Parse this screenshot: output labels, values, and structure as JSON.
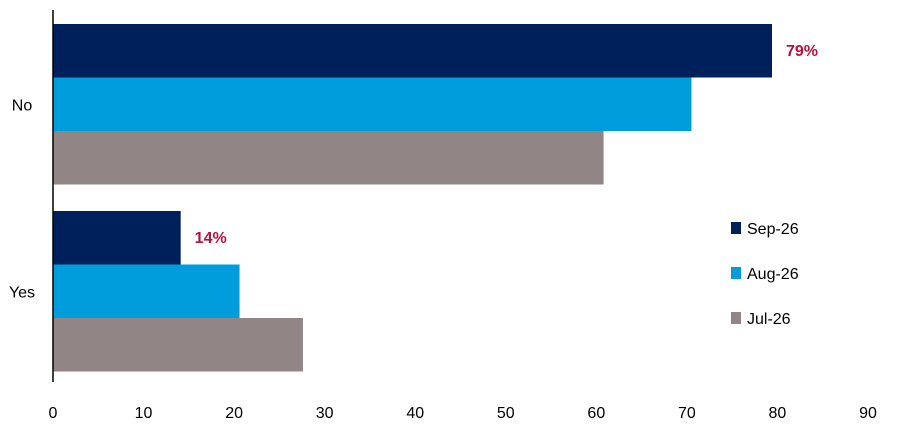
{
  "chart_data": {
    "type": "bar",
    "orientation": "horizontal",
    "categories": [
      "No",
      "Yes"
    ],
    "series": [
      {
        "name": "Sep-26",
        "color": "#00205B",
        "values": [
          79.4,
          14.1
        ]
      },
      {
        "name": "Aug-26",
        "color": "#009DDC",
        "values": [
          70.5,
          20.6
        ]
      },
      {
        "name": "Jul-26",
        "color": "#918685",
        "values": [
          60.8,
          27.6
        ]
      }
    ],
    "xlim": [
      0,
      90
    ],
    "xticks": [
      "0",
      "10",
      "20",
      "30",
      "40",
      "50",
      "60",
      "70",
      "80",
      "90"
    ],
    "data_labels": [
      {
        "category": "No",
        "series": "Sep-26",
        "text": "79%"
      },
      {
        "category": "Yes",
        "series": "Sep-26",
        "text": "14%"
      }
    ],
    "data_label_color": "#B5123E",
    "legend_position": "right",
    "grid": false
  }
}
